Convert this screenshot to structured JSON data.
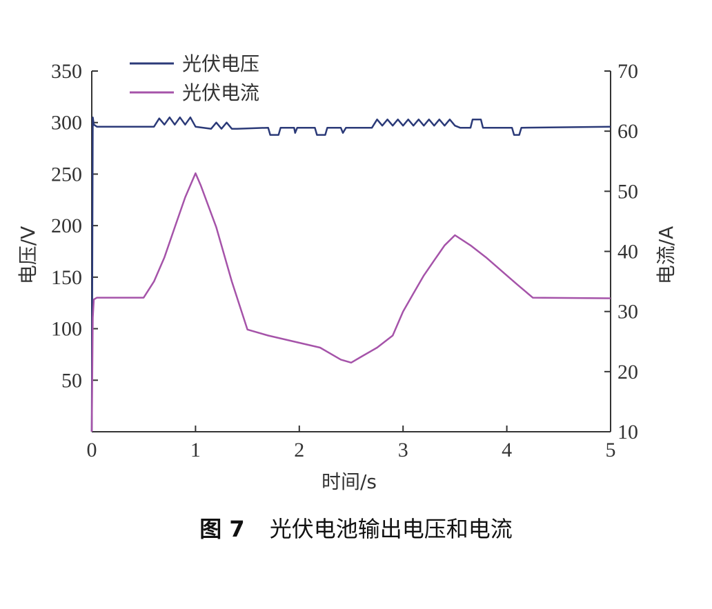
{
  "caption": {
    "figure_number": "图 7",
    "text": "光伏电池输出电压和电流"
  },
  "chart_data": {
    "type": "line",
    "xlabel": "时间/s",
    "ylabel_left": "电压/V",
    "ylabel_right": "电流/A",
    "xlim": [
      0,
      5
    ],
    "ylim_left": [
      0,
      350
    ],
    "ylim_right": [
      10,
      70
    ],
    "x_ticks": [
      0,
      1,
      2,
      3,
      4,
      5
    ],
    "y_left_ticks": [
      50,
      100,
      150,
      200,
      250,
      300,
      350
    ],
    "y_right_ticks": [
      10,
      20,
      30,
      40,
      50,
      60,
      70
    ],
    "grid": false,
    "legend_position": "top-left",
    "series": [
      {
        "name": "光伏电压",
        "axis": "left",
        "color": "#2b3a78",
        "points": [
          [
            0,
            0
          ],
          [
            0.01,
            305
          ],
          [
            0.02,
            298
          ],
          [
            0.05,
            296
          ],
          [
            0.6,
            296
          ],
          [
            0.65,
            304
          ],
          [
            0.7,
            298
          ],
          [
            0.75,
            305
          ],
          [
            0.8,
            298
          ],
          [
            0.85,
            305
          ],
          [
            0.9,
            298
          ],
          [
            0.95,
            305
          ],
          [
            1.0,
            296
          ],
          [
            1.15,
            294
          ],
          [
            1.2,
            300
          ],
          [
            1.25,
            294
          ],
          [
            1.3,
            300
          ],
          [
            1.35,
            294
          ],
          [
            1.4,
            294
          ],
          [
            1.7,
            295
          ],
          [
            1.72,
            288
          ],
          [
            1.8,
            288
          ],
          [
            1.82,
            295
          ],
          [
            1.95,
            295
          ],
          [
            1.96,
            290
          ],
          [
            1.98,
            295
          ],
          [
            2.15,
            295
          ],
          [
            2.17,
            288
          ],
          [
            2.25,
            288
          ],
          [
            2.27,
            295
          ],
          [
            2.4,
            295
          ],
          [
            2.42,
            290
          ],
          [
            2.45,
            295
          ],
          [
            2.7,
            295
          ],
          [
            2.75,
            303
          ],
          [
            2.8,
            297
          ],
          [
            2.85,
            303
          ],
          [
            2.9,
            297
          ],
          [
            2.95,
            303
          ],
          [
            3.0,
            297
          ],
          [
            3.05,
            303
          ],
          [
            3.1,
            297
          ],
          [
            3.15,
            303
          ],
          [
            3.2,
            297
          ],
          [
            3.25,
            303
          ],
          [
            3.3,
            297
          ],
          [
            3.35,
            303
          ],
          [
            3.4,
            297
          ],
          [
            3.45,
            303
          ],
          [
            3.5,
            297
          ],
          [
            3.55,
            295
          ],
          [
            3.65,
            295
          ],
          [
            3.67,
            303
          ],
          [
            3.75,
            303
          ],
          [
            3.77,
            295
          ],
          [
            4.05,
            295
          ],
          [
            4.07,
            288
          ],
          [
            4.12,
            288
          ],
          [
            4.14,
            295
          ],
          [
            5.0,
            296
          ]
        ]
      },
      {
        "name": "光伏电流",
        "axis": "right",
        "color": "#a553a9",
        "points": [
          [
            0,
            10
          ],
          [
            0.01,
            29
          ],
          [
            0.02,
            32
          ],
          [
            0.05,
            32.3
          ],
          [
            0.5,
            32.3
          ],
          [
            0.6,
            35
          ],
          [
            0.7,
            39
          ],
          [
            0.8,
            44
          ],
          [
            0.9,
            49
          ],
          [
            1.0,
            53
          ],
          [
            1.05,
            51
          ],
          [
            1.2,
            44
          ],
          [
            1.35,
            35
          ],
          [
            1.5,
            27
          ],
          [
            1.7,
            26
          ],
          [
            2.0,
            24.8
          ],
          [
            2.2,
            24
          ],
          [
            2.4,
            22
          ],
          [
            2.5,
            21.5
          ],
          [
            2.6,
            22.5
          ],
          [
            2.75,
            24
          ],
          [
            2.9,
            26
          ],
          [
            3.0,
            30
          ],
          [
            3.1,
            33
          ],
          [
            3.2,
            36
          ],
          [
            3.3,
            38.5
          ],
          [
            3.4,
            41
          ],
          [
            3.5,
            42.7
          ],
          [
            3.65,
            41
          ],
          [
            3.8,
            39
          ],
          [
            4.0,
            36
          ],
          [
            4.1,
            34.5
          ],
          [
            4.25,
            32.3
          ],
          [
            5.0,
            32.2
          ]
        ]
      }
    ]
  }
}
